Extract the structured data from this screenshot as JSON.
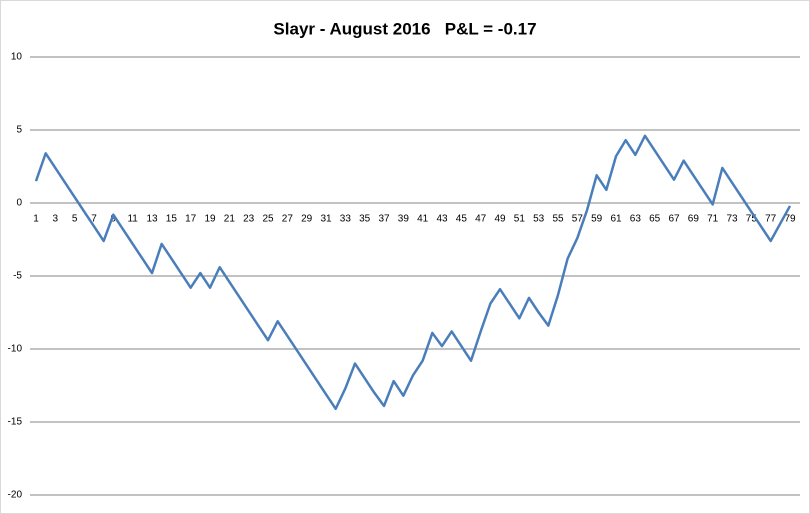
{
  "chart_data": {
    "type": "line",
    "title": "Slayr - August 2016   P&L = -0.17",
    "categories": [
      1,
      null,
      3,
      null,
      5,
      null,
      7,
      null,
      9,
      null,
      11,
      null,
      13,
      null,
      15,
      null,
      17,
      null,
      19,
      null,
      21,
      null,
      23,
      null,
      25,
      null,
      27,
      null,
      29,
      null,
      31,
      null,
      33,
      null,
      35,
      null,
      37,
      null,
      39,
      null,
      41,
      null,
      43,
      null,
      45,
      null,
      47,
      null,
      49,
      null,
      51,
      null,
      53,
      null,
      55,
      null,
      57,
      null,
      59,
      null,
      61,
      null,
      63,
      null,
      65,
      null,
      67,
      null,
      69,
      null,
      71,
      null,
      73,
      null,
      75,
      null,
      77,
      null,
      79
    ],
    "series": [
      {
        "color": "#4a7ebb",
        "values": [
          1.5,
          3.4,
          2.4,
          1.4,
          0.4,
          -0.6,
          -1.6,
          -2.6,
          -0.8,
          -1.8,
          -2.8,
          -3.8,
          -4.8,
          -2.8,
          -3.8,
          -4.8,
          -5.8,
          -4.8,
          -5.8,
          -4.4,
          -5.4,
          -6.4,
          -7.4,
          -8.4,
          -9.4,
          -8.1,
          -9.1,
          -10.1,
          -11.1,
          -12.1,
          -13.1,
          -14.1,
          -12.7,
          -11.0,
          -12.0,
          -13.0,
          -13.9,
          -12.2,
          -13.2,
          -11.8,
          -10.8,
          -8.9,
          -9.8,
          -8.8,
          -9.8,
          -10.8,
          -8.8,
          -6.9,
          -5.9,
          -6.9,
          -7.9,
          -6.5,
          -7.5,
          -8.4,
          -6.3,
          -3.8,
          -2.4,
          -0.5,
          1.9,
          0.9,
          3.2,
          4.3,
          3.3,
          4.6,
          3.6,
          2.6,
          1.6,
          2.9,
          1.9,
          0.9,
          -0.1,
          2.4,
          1.4,
          0.4,
          -0.6,
          -1.6,
          -2.6,
          -1.4,
          -0.2
        ]
      }
    ],
    "ylim": [
      -20,
      10
    ],
    "yticks": [
      -20,
      -15,
      -10,
      -5,
      0,
      5,
      10
    ],
    "grid": true
  }
}
